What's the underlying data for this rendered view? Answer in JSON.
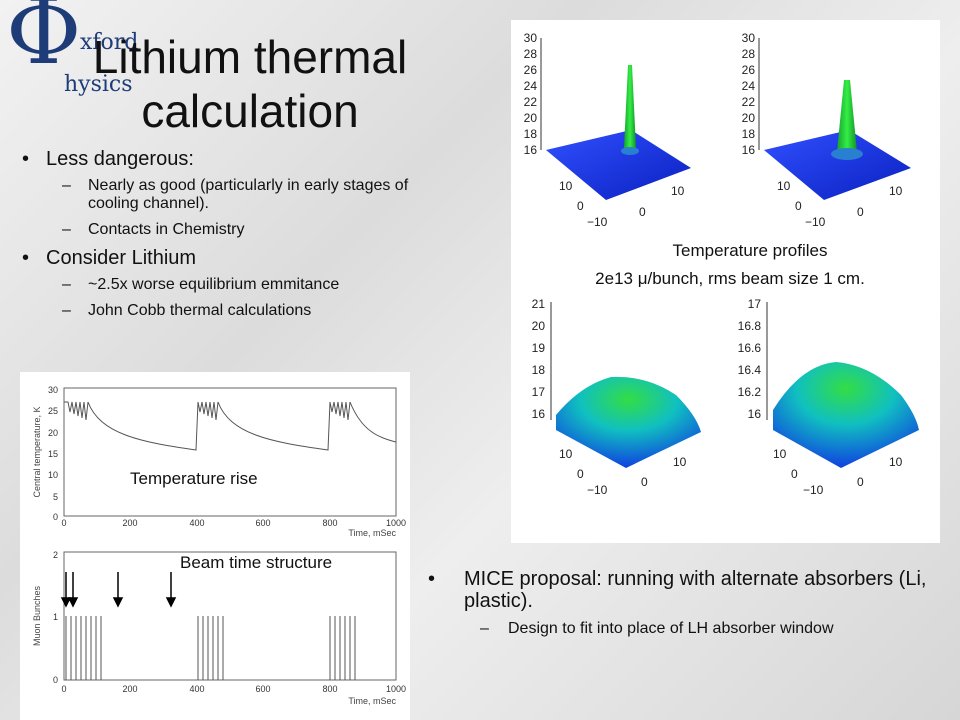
{
  "logo": {
    "symbol": "Φ",
    "line1": "xford",
    "line2": "hysics"
  },
  "title": {
    "line1": "Lithium thermal",
    "line2": "calculation"
  },
  "bullets": [
    {
      "text": "Less dangerous:",
      "subs": [
        "Nearly as good (particularly in early stages of cooling channel).",
        "Contacts in Chemistry"
      ]
    },
    {
      "text": "Consider Lithium",
      "subs": [
        "~2.5x worse equilibrium emmitance",
        "John Cobb thermal calculations"
      ]
    }
  ],
  "profiles": {
    "caption1": "Temperature profiles",
    "caption2": "2e13 μ/bunch, rms beam size 1 cm.",
    "top_z_ticks": [
      "30",
      "28",
      "26",
      "24",
      "22",
      "20",
      "18",
      "16"
    ],
    "bottom_left_z_ticks": [
      "21",
      "20",
      "19",
      "18",
      "17",
      "16"
    ],
    "bottom_right_z_ticks": [
      "17",
      "16.8",
      "16.6",
      "16.4",
      "16.2",
      "16"
    ],
    "xy_ticks": [
      "10",
      "0",
      "−10",
      "0",
      "10"
    ]
  },
  "temp_plot": {
    "label": "Temperature rise",
    "ylabel": "Central temperature, K",
    "xlabel": "Time, mSec",
    "yticks": [
      "30",
      "25",
      "20",
      "15",
      "10",
      "5",
      "0"
    ],
    "xticks": [
      "0",
      "200",
      "400",
      "600",
      "800",
      "1000"
    ]
  },
  "beam_plot": {
    "label": "Beam time structure",
    "ylabel": "Muon Bunches",
    "xlabel": "Time, mSec",
    "yticks": [
      "2",
      "1",
      "0"
    ],
    "xticks": [
      "0",
      "200",
      "400",
      "600",
      "800",
      "1000"
    ]
  },
  "mice": {
    "bullet": "MICE proposal: running with alternate absorbers (Li, plastic).",
    "sub": "Design to fit into place of LH absorber window"
  },
  "colors": {
    "logo": "#1e3c78",
    "surface_blue": "#1030e0",
    "peak_green": "#22dd33"
  }
}
